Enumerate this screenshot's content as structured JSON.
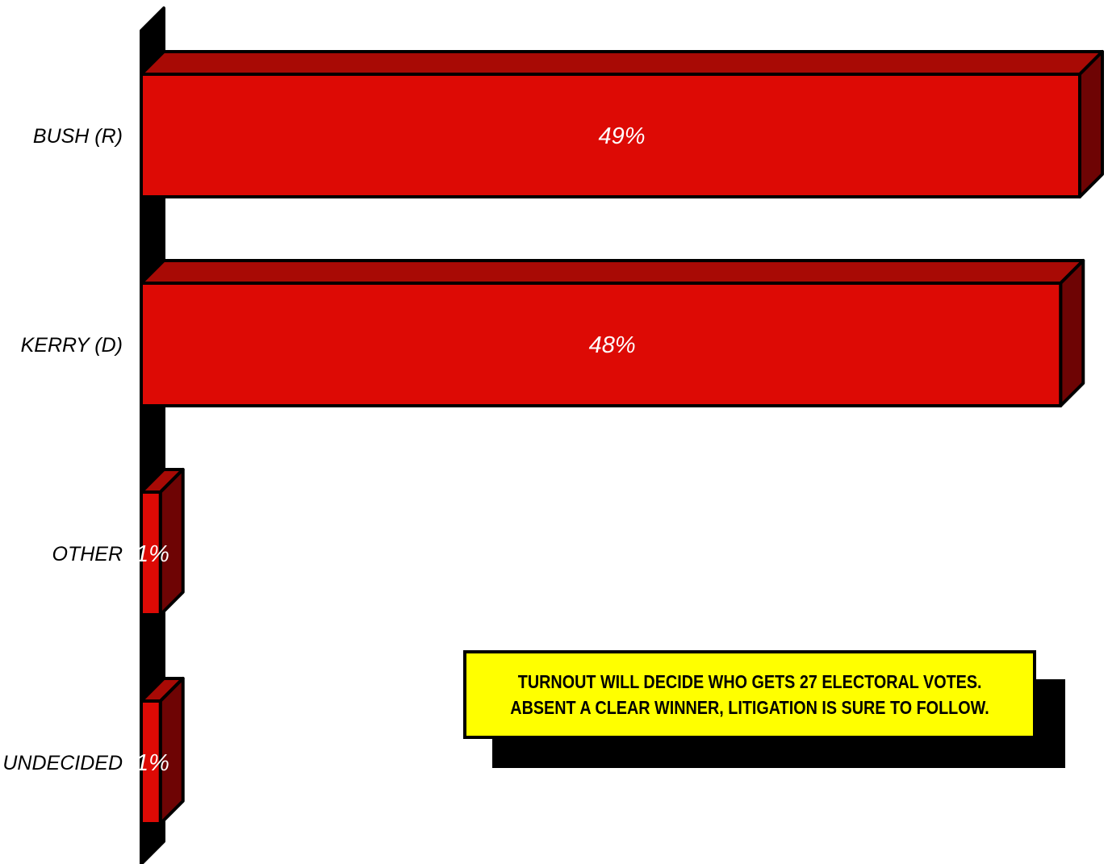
{
  "chart_data": {
    "type": "bar",
    "orientation": "horizontal",
    "categories": [
      "BUSH (R)",
      "KERRY (D)",
      "OTHER",
      "UNDECIDED"
    ],
    "values": [
      49,
      48,
      1,
      1
    ],
    "value_labels": [
      "49%",
      "48%",
      "1%",
      "1%"
    ],
    "title": "",
    "xlabel": "",
    "ylabel": "",
    "xlim": [
      0,
      49
    ],
    "grid": false,
    "legend": "none",
    "colors": {
      "bar_front": "#dd0a05",
      "bar_top": "#a80a05",
      "bar_side": "#6e0404",
      "axis_wall": "#000000",
      "note_background": "#ffff00"
    }
  },
  "note": {
    "lines": [
      "TURNOUT WILL DECIDE WHO GETS 27 ELECTORAL VOTES.",
      "ABSENT A CLEAR WINNER, LITIGATION IS SURE TO FOLLOW."
    ]
  }
}
